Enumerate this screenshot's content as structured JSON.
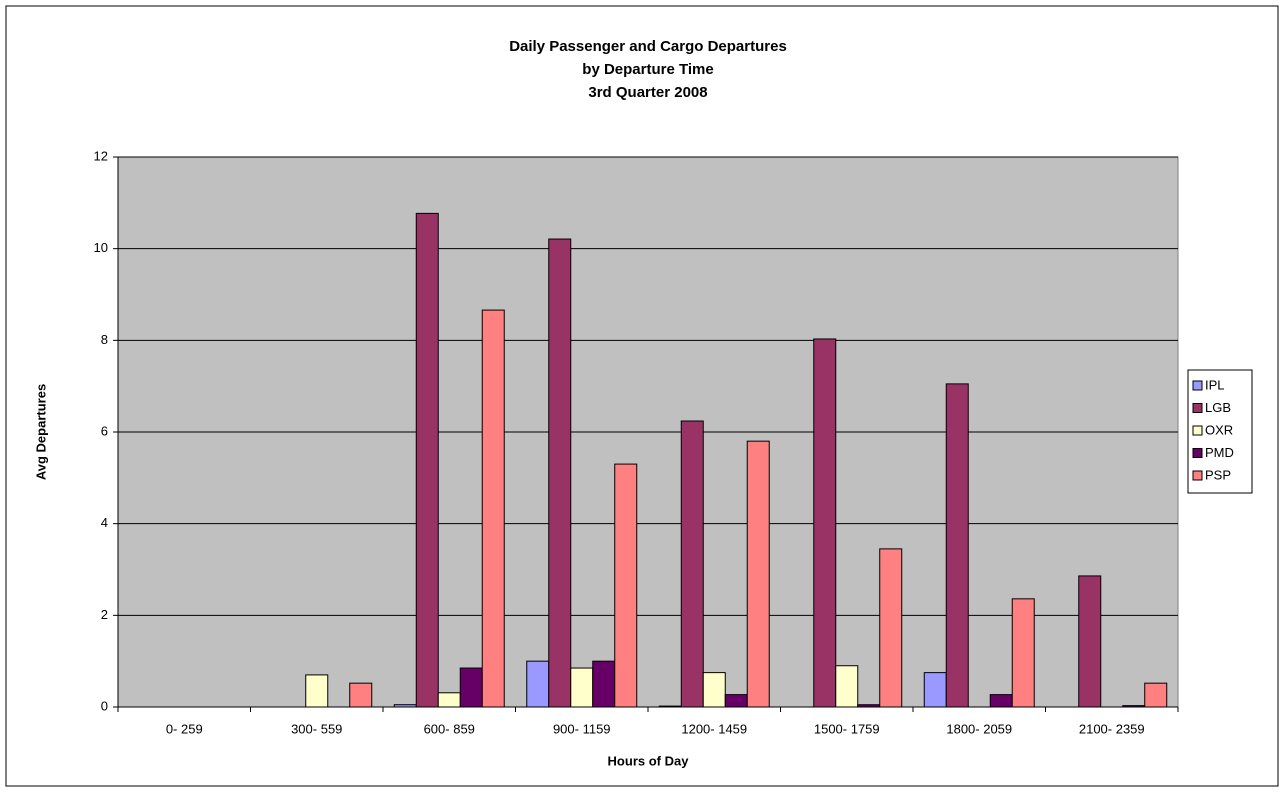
{
  "chart_data": {
    "type": "bar",
    "title": [
      "Daily Passenger and Cargo Departures",
      "by Departure Time",
      "3rd Quarter 2008"
    ],
    "x_label": "Hours of Day",
    "y_label": "Avg Departures",
    "categories": [
      "0- 259",
      "300- 559",
      "600- 859",
      "900- 1159",
      "1200- 1459",
      "1500- 1759",
      "1800- 2059",
      "2100- 2359"
    ],
    "series": [
      {
        "name": "IPL",
        "color": "#9999ff",
        "values": [
          0,
          0,
          0.05,
          1.0,
          0.02,
          0,
          0.75,
          0
        ]
      },
      {
        "name": "LGB",
        "color": "#993366",
        "values": [
          0,
          0,
          10.77,
          10.21,
          6.24,
          8.03,
          7.05,
          2.86
        ]
      },
      {
        "name": "OXR",
        "color": "#ffffcc",
        "values": [
          0,
          0.7,
          0.31,
          0.85,
          0.75,
          0.9,
          0,
          0
        ]
      },
      {
        "name": "PMD",
        "color": "#660066",
        "values": [
          0,
          0,
          0.85,
          1.0,
          0.27,
          0.05,
          0.27,
          0.03
        ]
      },
      {
        "name": "PSP",
        "color": "#ff8080",
        "values": [
          0,
          0.52,
          8.66,
          5.3,
          5.8,
          3.45,
          2.36,
          0.52
        ]
      }
    ],
    "ylim": [
      0,
      12
    ],
    "yticks": [
      0,
      2,
      4,
      6,
      8,
      10,
      12
    ],
    "grid": true,
    "legend": "right",
    "plot_background": "#c0c0c0"
  }
}
